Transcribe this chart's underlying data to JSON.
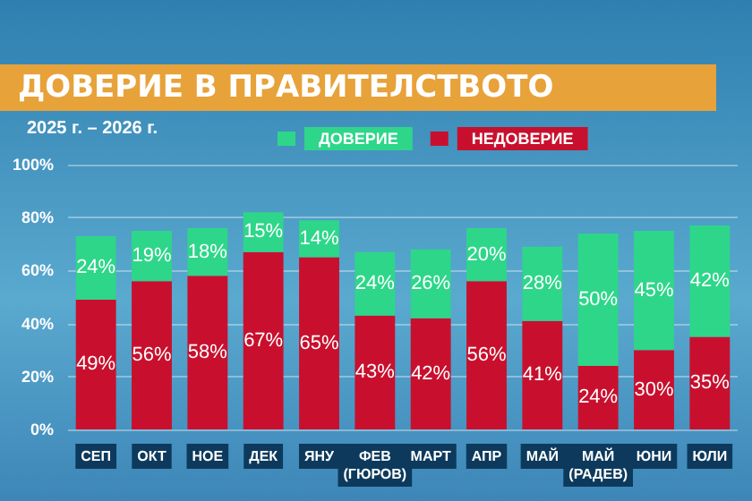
{
  "chart_data": {
    "type": "bar",
    "title": "ДОВЕРИЕ В ПРАВИТЕЛСТВОТО",
    "subtitle": "2025 г. – 2026 г.",
    "categories": [
      "СЕП",
      "ОКТ",
      "НОЕ",
      "ДЕК",
      "ЯНУ",
      "ФЕВ\n(ГЮРОВ)",
      "МАРТ",
      "АПР",
      "МАЙ",
      "МАЙ\n(РАДЕВ)",
      "ЮНИ",
      "ЮЛИ"
    ],
    "stacked": true,
    "series": [
      {
        "name": "НЕДОВЕРИЕ",
        "color": "#c8102e",
        "values": [
          49,
          56,
          58,
          67,
          65,
          43,
          42,
          56,
          41,
          24,
          30,
          35
        ],
        "value_labels": [
          "49%",
          "56%",
          "58%",
          "67%",
          "65%",
          "43%",
          "42%",
          "56%",
          "41%",
          "24%",
          "30%",
          "35%"
        ]
      },
      {
        "name": "ДОВЕРИЕ",
        "color": "#2ed68a",
        "values": [
          24,
          19,
          18,
          15,
          14,
          24,
          26,
          20,
          28,
          50,
          45,
          42
        ],
        "value_labels": [
          "24%",
          "19%",
          "18%",
          "15%",
          "14%",
          "24%",
          "26%",
          "20%",
          "28%",
          "50%",
          "45%",
          "42%"
        ]
      }
    ],
    "ylim": [
      0,
      100
    ],
    "yticks": [
      {
        "value": 0,
        "label": "0%"
      },
      {
        "value": 20,
        "label": "20%"
      },
      {
        "value": 40,
        "label": "40%"
      },
      {
        "value": 60,
        "label": "60%"
      },
      {
        "value": 80,
        "label": "80%"
      },
      {
        "value": 100,
        "label": "100%"
      }
    ],
    "grid": "y",
    "legend": "top"
  }
}
